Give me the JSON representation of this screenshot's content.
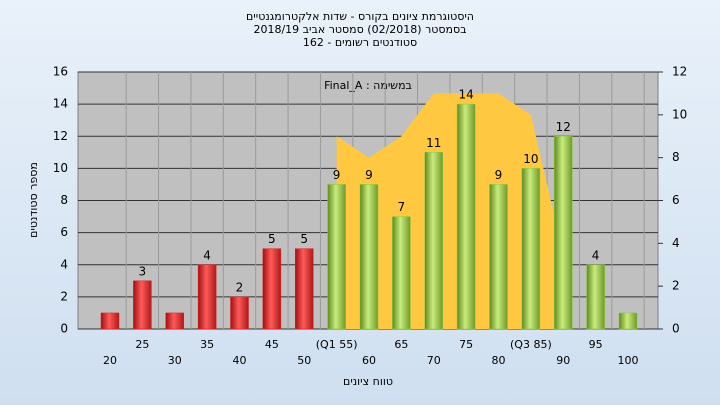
{
  "chart_data": {
    "type": "bar",
    "title": "היסטוגרמת ציונים בקורס - שדות אלקטרומגנטיים",
    "subtitle": [
      "בסמסטר  (02/2018)  סמסטר אביב 2018/19",
      "סטודנטים רשומים - 162"
    ],
    "annotation": "Final_A : במשימה",
    "x_label": "טווח ציונים",
    "y_label": "מספר סטודנטים",
    "categories": [
      "20",
      "25",
      "30",
      "35",
      "40",
      "45",
      "50",
      "(Q1 55)",
      "60",
      "65",
      "70",
      "75",
      "80",
      "(Q3 85)",
      "90",
      "95",
      "100"
    ],
    "series": [
      {
        "type": "bar",
        "values": [
          1,
          3,
          1,
          4,
          2,
          5,
          5,
          9,
          9,
          7,
          11,
          14,
          9,
          10,
          12,
          4,
          1
        ],
        "value_labels": [
          null,
          "3",
          null,
          "4",
          "2",
          "5",
          "5",
          "9",
          "9",
          "7",
          "11",
          "14",
          "9",
          "10",
          "12",
          "4",
          null
        ],
        "colors": [
          "#e02020",
          "#e02020",
          "#e02020",
          "#e02020",
          "#e02020",
          "#e02020",
          "#e02020",
          "#8cc63f",
          "#8cc63f",
          "#8cc63f",
          "#8cc63f",
          "#8cc63f",
          "#8cc63f",
          "#8cc63f",
          "#8cc63f",
          "#8cc63f",
          "#8cc63f"
        ]
      },
      {
        "type": "area",
        "axis": "y2",
        "color": "#ffc840",
        "values": [
          null,
          null,
          null,
          null,
          null,
          null,
          null,
          9,
          8,
          9,
          11,
          11,
          11,
          10,
          3.5,
          null,
          null
        ]
      }
    ],
    "ylim": [
      0,
      16
    ],
    "yticks": [
      0,
      2,
      4,
      6,
      8,
      10,
      12,
      14,
      16
    ],
    "y2lim": [
      0,
      12
    ],
    "y2ticks": [
      0,
      2,
      4,
      6,
      8,
      10,
      12
    ],
    "grid": true
  }
}
